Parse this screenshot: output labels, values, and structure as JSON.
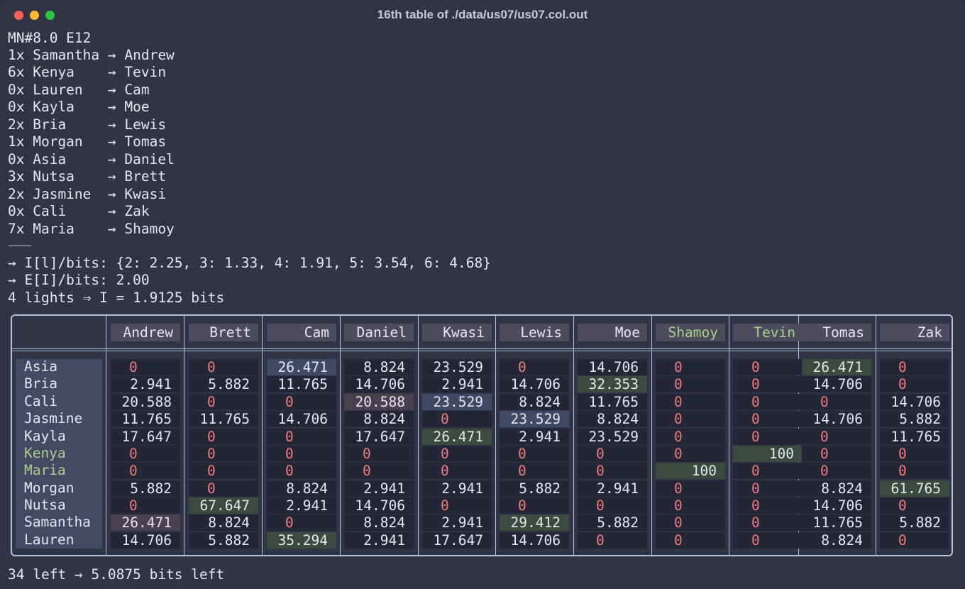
{
  "window": {
    "title": "16th table of ./data/us07/us07.col.out"
  },
  "header_line": "MN#8.0 E12",
  "constraints": [
    {
      "count": "1x",
      "left": "Samantha",
      "right": "Andrew"
    },
    {
      "count": "6x",
      "left": "Kenya",
      "right": "Tevin"
    },
    {
      "count": "0x",
      "left": "Lauren",
      "right": "Cam"
    },
    {
      "count": "0x",
      "left": "Kayla",
      "right": "Moe"
    },
    {
      "count": "2x",
      "left": "Bria",
      "right": "Lewis"
    },
    {
      "count": "1x",
      "left": "Morgan",
      "right": "Tomas"
    },
    {
      "count": "0x",
      "left": "Asia",
      "right": "Daniel"
    },
    {
      "count": "3x",
      "left": "Nutsa",
      "right": "Brett"
    },
    {
      "count": "2x",
      "left": "Jasmine",
      "right": "Kwasi"
    },
    {
      "count": "0x",
      "left": "Cali",
      "right": "Zak"
    },
    {
      "count": "7x",
      "left": "Maria",
      "right": "Shamoy"
    }
  ],
  "stats": {
    "info_line": "→ I[l]/bits: {2: 2.25, 3: 1.33, 4: 1.91, 5: 3.54, 6: 4.68}",
    "expected_line": "→ E[I]/bits: 2.00",
    "lights_line": "4 lights ⇒ I = 1.9125 bits"
  },
  "footer": "34 left → 5.0875 bits left",
  "colors": {
    "background": "#313445",
    "cell": "#232636",
    "zero": "#ef7a7a",
    "fixed": "#a6d189",
    "hl_blue": "#3e4a65",
    "hl_green": "#3a4a3e",
    "hl_mauve": "#4a3f4c"
  },
  "table": {
    "columns": [
      "Andrew",
      "Brett",
      "Cam",
      "Daniel",
      "Kwasi",
      "Lewis",
      "Moe",
      "Shamoy",
      "Tevin",
      "Tomas",
      "Zak"
    ],
    "fixed_columns": [
      "Shamoy",
      "Tevin"
    ],
    "fixed_rows": [
      "Kenya",
      "Maria"
    ],
    "rows": [
      {
        "name": "Asia",
        "values": [
          "0",
          "0",
          "26.471",
          "8.824",
          "23.529",
          "0",
          "14.706",
          "0",
          "0",
          "26.471",
          "0"
        ]
      },
      {
        "name": "Bria",
        "values": [
          "2.941",
          "5.882",
          "11.765",
          "14.706",
          "2.941",
          "14.706",
          "32.353",
          "0",
          "0",
          "14.706",
          "0"
        ]
      },
      {
        "name": "Cali",
        "values": [
          "20.588",
          "0",
          "0",
          "20.588",
          "23.529",
          "8.824",
          "11.765",
          "0",
          "0",
          "0",
          "14.706"
        ]
      },
      {
        "name": "Jasmine",
        "values": [
          "11.765",
          "11.765",
          "14.706",
          "8.824",
          "0",
          "23.529",
          "8.824",
          "0",
          "0",
          "14.706",
          "5.882"
        ]
      },
      {
        "name": "Kayla",
        "values": [
          "17.647",
          "0",
          "0",
          "17.647",
          "26.471",
          "2.941",
          "23.529",
          "0",
          "0",
          "0",
          "11.765"
        ]
      },
      {
        "name": "Kenya",
        "values": [
          "0",
          "0",
          "0",
          "0",
          "0",
          "0",
          "0",
          "0",
          "100",
          "0",
          "0"
        ]
      },
      {
        "name": "Maria",
        "values": [
          "0",
          "0",
          "0",
          "0",
          "0",
          "0",
          "0",
          "100",
          "0",
          "0",
          "0"
        ]
      },
      {
        "name": "Morgan",
        "values": [
          "5.882",
          "0",
          "8.824",
          "2.941",
          "2.941",
          "5.882",
          "2.941",
          "0",
          "0",
          "8.824",
          "61.765"
        ]
      },
      {
        "name": "Nutsa",
        "values": [
          "0",
          "67.647",
          "2.941",
          "14.706",
          "0",
          "0",
          "0",
          "0",
          "0",
          "14.706",
          "0"
        ]
      },
      {
        "name": "Samantha",
        "values": [
          "26.471",
          "8.824",
          "0",
          "8.824",
          "2.941",
          "29.412",
          "5.882",
          "0",
          "0",
          "11.765",
          "5.882"
        ]
      },
      {
        "name": "Lauren",
        "values": [
          "14.706",
          "5.882",
          "35.294",
          "2.941",
          "17.647",
          "14.706",
          "0",
          "0",
          "0",
          "8.824",
          "0"
        ]
      }
    ],
    "highlights": [
      {
        "row": 0,
        "col": 2,
        "color": "blue"
      },
      {
        "row": 0,
        "col": 9,
        "color": "green"
      },
      {
        "row": 1,
        "col": 6,
        "color": "green"
      },
      {
        "row": 2,
        "col": 3,
        "color": "mauve"
      },
      {
        "row": 2,
        "col": 4,
        "color": "blue"
      },
      {
        "row": 3,
        "col": 5,
        "color": "blue"
      },
      {
        "row": 4,
        "col": 4,
        "color": "green"
      },
      {
        "row": 5,
        "col": 8,
        "color": "green"
      },
      {
        "row": 6,
        "col": 7,
        "color": "green"
      },
      {
        "row": 7,
        "col": 10,
        "color": "green"
      },
      {
        "row": 8,
        "col": 1,
        "color": "green"
      },
      {
        "row": 9,
        "col": 0,
        "color": "mauve"
      },
      {
        "row": 9,
        "col": 5,
        "color": "green"
      },
      {
        "row": 10,
        "col": 2,
        "color": "green"
      }
    ]
  }
}
